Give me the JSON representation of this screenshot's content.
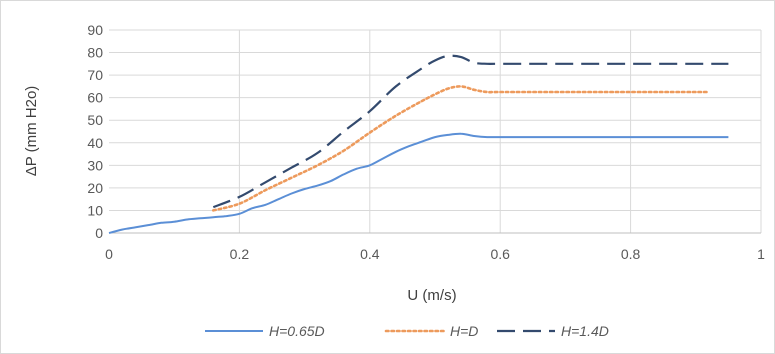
{
  "chart_data": {
    "type": "line",
    "xlabel": "U (m/s)",
    "ylabel": "ΔP (mm H2o)",
    "xlim": [
      0,
      1
    ],
    "ylim": [
      0,
      90
    ],
    "xticks": [
      0,
      0.2,
      0.4,
      0.6,
      0.8,
      1
    ],
    "xtick_labels": [
      "0",
      "0.2",
      "0.4",
      "0.6",
      "0.8",
      "1"
    ],
    "yticks": [
      0,
      10,
      20,
      30,
      40,
      50,
      60,
      70,
      80,
      90
    ],
    "ytick_labels": [
      "0",
      "10",
      "20",
      "30",
      "40",
      "50",
      "60",
      "70",
      "80",
      "90"
    ],
    "grid": "vertical",
    "legend_position": "bottom",
    "series": [
      {
        "name": "H=0.65D",
        "color": "#5b8fd6",
        "dash": "solid",
        "x": [
          0,
          0.02,
          0.04,
          0.06,
          0.08,
          0.1,
          0.12,
          0.14,
          0.16,
          0.18,
          0.2,
          0.22,
          0.24,
          0.26,
          0.28,
          0.3,
          0.32,
          0.34,
          0.36,
          0.38,
          0.4,
          0.42,
          0.44,
          0.46,
          0.48,
          0.5,
          0.52,
          0.54,
          0.56,
          0.58,
          0.6,
          0.7,
          0.8,
          0.9,
          0.95
        ],
        "y": [
          0,
          1.5,
          2.5,
          3.5,
          4.5,
          5,
          6,
          6.5,
          7,
          7.5,
          8.5,
          11,
          12.5,
          15,
          17.5,
          19.5,
          21,
          23,
          26,
          28.5,
          30,
          33,
          36,
          38.5,
          40.5,
          42.5,
          43.5,
          44,
          43,
          42.5,
          42.5,
          42.5,
          42.5,
          42.5,
          42.5
        ]
      },
      {
        "name": "H=D",
        "color": "#ed9a5c",
        "dash": "dotted",
        "x": [
          0.16,
          0.2,
          0.24,
          0.28,
          0.32,
          0.36,
          0.4,
          0.44,
          0.48,
          0.5,
          0.52,
          0.54,
          0.56,
          0.58,
          0.6,
          0.7,
          0.8,
          0.92
        ],
        "y": [
          10,
          13,
          19,
          24.5,
          30,
          36.5,
          44.5,
          52,
          58.5,
          61.5,
          64,
          65,
          63.5,
          62.5,
          62.5,
          62.5,
          62.5,
          62.5
        ]
      },
      {
        "name": "H=1.4D",
        "color": "#334a6e",
        "dash": "dashed",
        "x": [
          0.16,
          0.2,
          0.24,
          0.28,
          0.32,
          0.36,
          0.4,
          0.44,
          0.48,
          0.5,
          0.52,
          0.54,
          0.56,
          0.58,
          0.6,
          0.7,
          0.8,
          0.95
        ],
        "y": [
          11.5,
          16,
          22.5,
          29,
          35.5,
          45,
          54,
          65,
          73,
          76.5,
          78.5,
          78,
          75.5,
          75,
          75,
          75,
          75,
          75
        ]
      }
    ]
  }
}
